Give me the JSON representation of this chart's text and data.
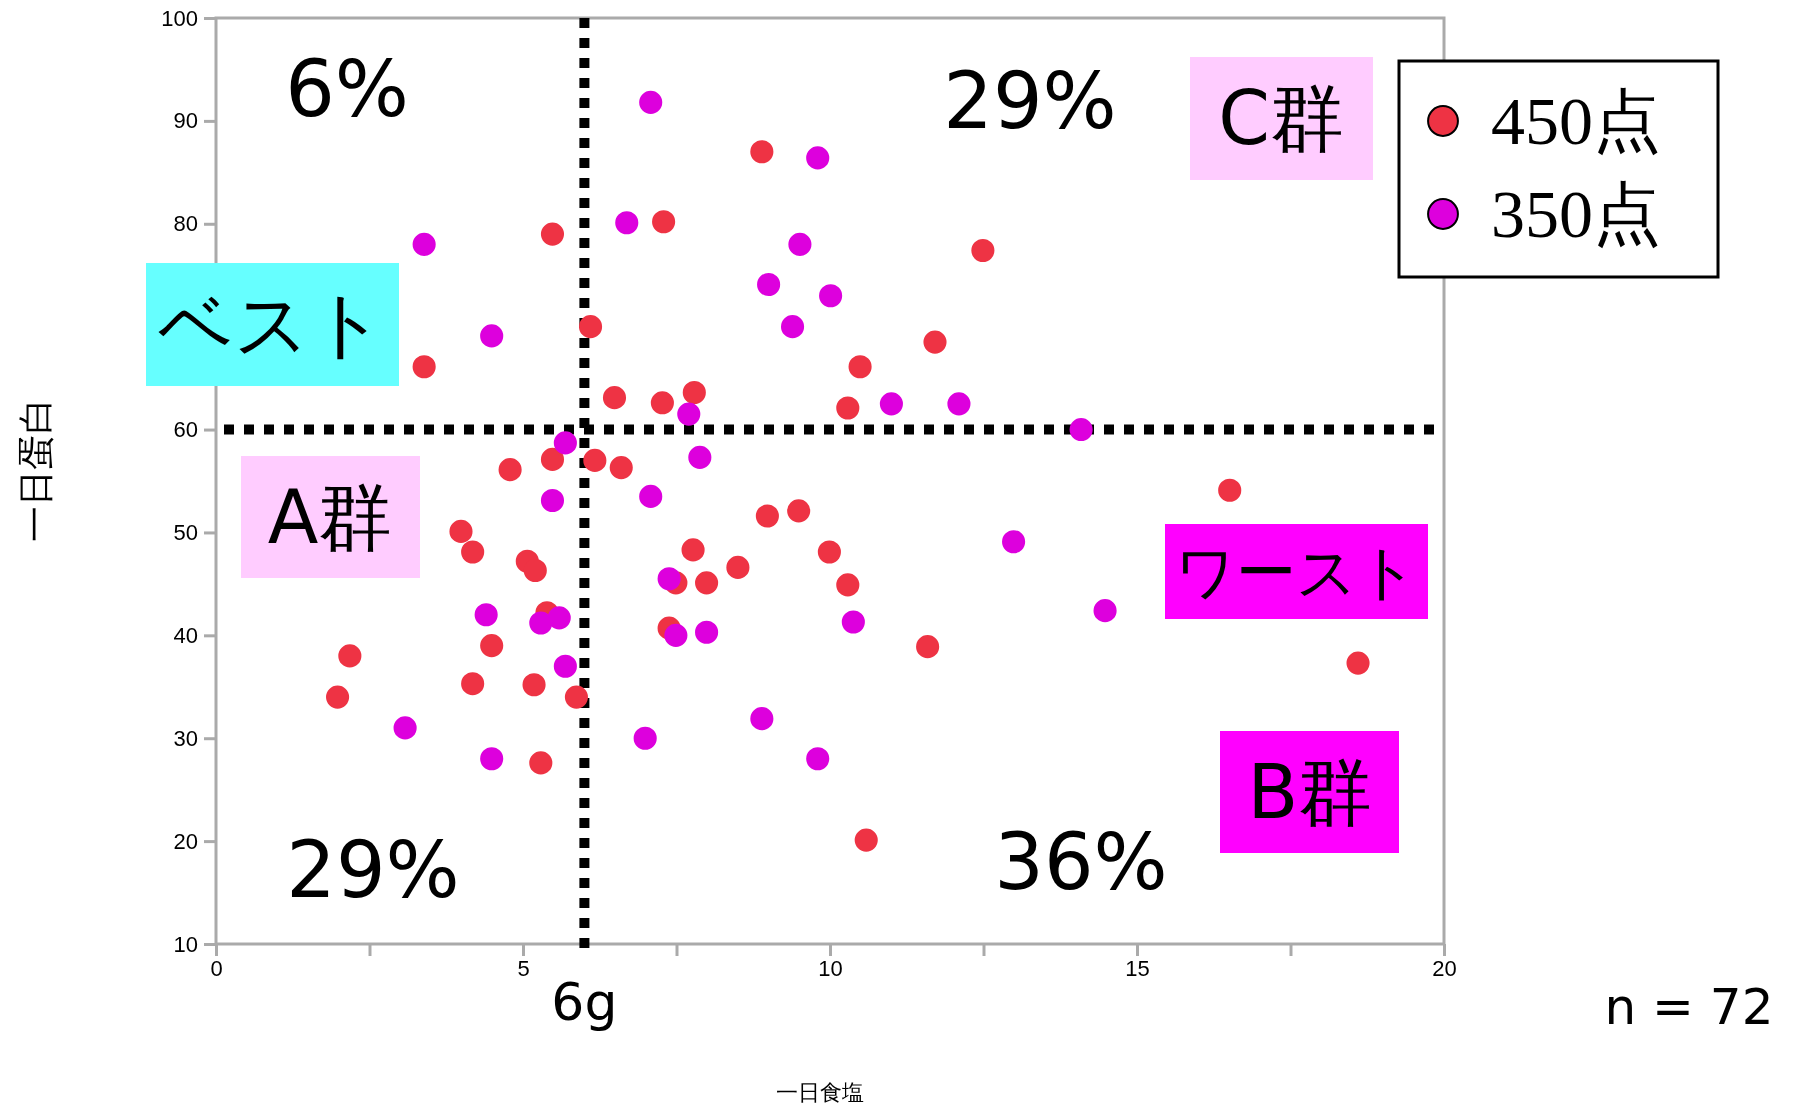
{
  "chart_data": {
    "type": "scatter",
    "xlabel": "一日食塩",
    "ylabel": "一日蛋白",
    "xlim": [
      0,
      20
    ],
    "ylim": [
      10,
      100
    ],
    "xticks": [
      0,
      {
        "value": 2.5,
        "label": null
      },
      5,
      {
        "value": 7.5,
        "label": null
      },
      10,
      {
        "value": 12.5,
        "label": null
      },
      15,
      {
        "value": 17.5,
        "label": null
      },
      20
    ],
    "yticks": [
      10,
      20,
      30,
      40,
      50,
      60,
      {
        "value": 70,
        "label": null
      },
      80,
      90,
      100
    ],
    "marker": "circle",
    "legend": "top right",
    "series": [
      {
        "name": "450点",
        "color": "#ee3344",
        "x": [
          8.89,
          7.29,
          5.48,
          12.49,
          6.1,
          11.71,
          3.39,
          10.49,
          6.49,
          7.27,
          7.79,
          10.29,
          6.17,
          6.6,
          5.48,
          4.79,
          3.99,
          4.18,
          5.07,
          5.2,
          7.77,
          8.5,
          8.98,
          9.49,
          9.99,
          10.29,
          7.49,
          7.99,
          5.39,
          7.38,
          4.49,
          2.18,
          4.18,
          5.18,
          5.87,
          1.98,
          5.29,
          11.59,
          16.51,
          18.6,
          10.59
        ],
        "values": [
          87,
          80.2,
          79,
          77.4,
          70,
          68.5,
          66.1,
          66.1,
          63.1,
          62.6,
          63.6,
          62.1,
          57,
          56.3,
          57.1,
          56.1,
          50.1,
          48.1,
          47.2,
          46.3,
          48.3,
          46.6,
          51.6,
          52.1,
          48.1,
          44.9,
          45.1,
          45.1,
          42.2,
          40.7,
          39,
          38,
          35.3,
          35.2,
          34,
          34,
          27.6,
          38.9,
          54.1,
          37.3,
          20.1
        ]
      },
      {
        "name": "350点",
        "color": "#dd00dd",
        "x": [
          7.08,
          9.8,
          6.69,
          3.39,
          9.51,
          9,
          10.01,
          9.39,
          4.49,
          11,
          12.1,
          7.7,
          14.09,
          5.69,
          7.88,
          5.48,
          7.08,
          12.99,
          7.38,
          4.4,
          5.59,
          5.29,
          10.38,
          14.48,
          7.49,
          7.99,
          5.69,
          3.08,
          6.99,
          8.89,
          4.49,
          9.8
        ],
        "values": [
          91.8,
          86.4,
          80.1,
          78,
          78,
          74.1,
          73,
          70,
          69.1,
          62.5,
          62.5,
          61.5,
          60,
          58.7,
          57.3,
          53.1,
          53.5,
          49.1,
          45.5,
          42,
          41.7,
          41.2,
          41.3,
          42.4,
          40,
          40.3,
          37,
          31,
          30,
          31.9,
          28,
          28
        ]
      }
    ],
    "ref_lines": [
      {
        "axis": "x",
        "value": 6,
        "label": "6g",
        "line_style": "dotted",
        "color": "#000000"
      },
      {
        "axis": "y",
        "value": 60,
        "label": null,
        "line_style": "dotted",
        "color": "#000000"
      }
    ],
    "annotations": [
      "6%",
      "29%",
      "C群",
      "ベスト",
      "A群",
      "ワースト",
      "29%",
      "36%",
      "B群",
      "n = 72"
    ]
  }
}
